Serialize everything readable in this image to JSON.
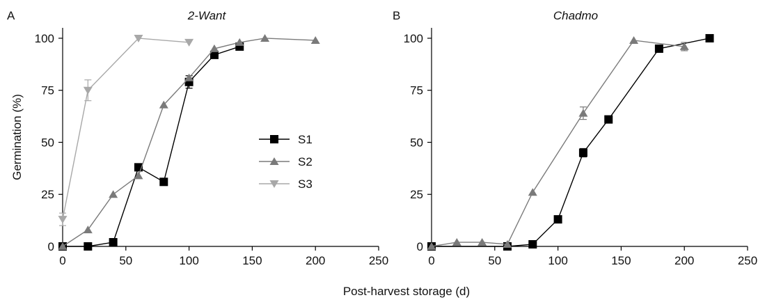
{
  "figure": {
    "xlabel": "Post-harvest storage (d)"
  },
  "chart_data": [
    {
      "type": "line",
      "panel_label": "A",
      "title": "2-Want",
      "ylabel": "Germination (%)",
      "xlabel": "",
      "xlim": [
        0,
        250
      ],
      "ylim": [
        0,
        105
      ],
      "xticks": [
        0,
        50,
        100,
        150,
        200,
        250
      ],
      "yticks": [
        0,
        25,
        50,
        75,
        100
      ],
      "grid": false,
      "legend_position": "center-right",
      "series": [
        {
          "name": "S1",
          "marker": "square",
          "color": "#000000",
          "x": [
            0,
            20,
            40,
            60,
            80,
            100,
            120,
            140
          ],
          "y": [
            0,
            0,
            2,
            38,
            31,
            79,
            92,
            96
          ],
          "err": [
            0,
            0,
            0,
            0,
            0,
            3,
            0,
            0
          ]
        },
        {
          "name": "S2",
          "marker": "triangle-up",
          "color": "#7a7a7a",
          "x": [
            0,
            20,
            40,
            60,
            80,
            100,
            120,
            140,
            160,
            200
          ],
          "y": [
            0,
            8,
            25,
            34,
            68,
            81,
            95,
            98,
            100,
            99
          ],
          "err": [
            0,
            0,
            0,
            0,
            0,
            0,
            0,
            0,
            0,
            0
          ]
        },
        {
          "name": "S3",
          "marker": "triangle-down",
          "color": "#a8a8a8",
          "x": [
            0,
            20,
            60,
            100
          ],
          "y": [
            13,
            75,
            100,
            98
          ],
          "err": [
            3,
            5,
            0,
            0
          ]
        }
      ]
    },
    {
      "type": "line",
      "panel_label": "B",
      "title": "Chadmo",
      "ylabel": "",
      "xlabel": "",
      "xlim": [
        0,
        250
      ],
      "ylim": [
        0,
        105
      ],
      "xticks": [
        0,
        50,
        100,
        150,
        200,
        250
      ],
      "yticks": [
        0,
        25,
        50,
        75,
        100
      ],
      "grid": false,
      "series": [
        {
          "name": "S1",
          "marker": "square",
          "color": "#000000",
          "x": [
            0,
            60,
            80,
            100,
            120,
            140,
            180,
            220
          ],
          "y": [
            0,
            0,
            1,
            13,
            45,
            61,
            95,
            100
          ],
          "err": [
            0,
            0,
            0,
            0,
            2,
            0,
            0,
            0
          ]
        },
        {
          "name": "S2",
          "marker": "triangle-up",
          "color": "#7a7a7a",
          "x": [
            0,
            20,
            40,
            60,
            80,
            120,
            160,
            200
          ],
          "y": [
            0,
            2,
            2,
            1,
            26,
            64,
            99,
            96
          ],
          "err": [
            0,
            0,
            0,
            0,
            0,
            3,
            0,
            2
          ]
        }
      ]
    }
  ]
}
